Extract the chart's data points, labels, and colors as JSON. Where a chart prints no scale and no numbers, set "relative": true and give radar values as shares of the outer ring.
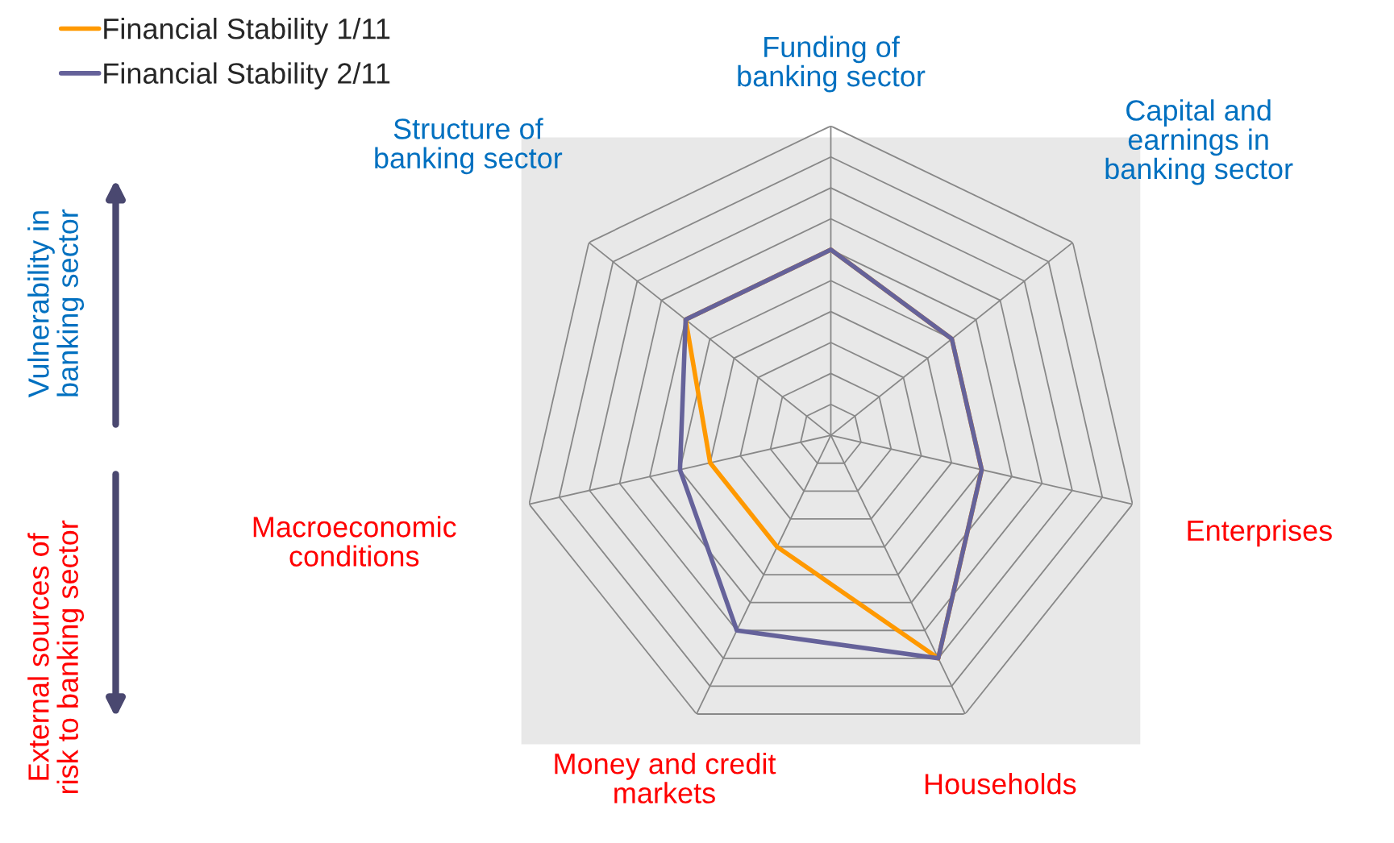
{
  "chart_data": {
    "type": "radar",
    "relative": true,
    "categories": [
      "Funding of\nbanking sector",
      "Capital and\nearnings in\nbanking sector",
      "Enterprises",
      "Households",
      "Money and credit\nmarkets",
      "Macroeconomic\nconditions",
      "Structure of\nbanking sector"
    ],
    "series": [
      {
        "name": "Financial Stability 1/11",
        "color": "#ff9900",
        "values": [
          0.6,
          0.5,
          0.5,
          0.8,
          0.4,
          0.4,
          0.6
        ]
      },
      {
        "name": "Financial Stability 2/11",
        "color": "#65629a",
        "values": [
          0.6,
          0.5,
          0.5,
          0.8,
          0.7,
          0.5,
          0.6
        ]
      }
    ],
    "annotations": [
      "Vulnerability in\nbanking sector",
      "External sources of\nrisk to banking sector"
    ],
    "legend": "top left",
    "grid": true,
    "marker": "none",
    "line_style": "solid"
  }
}
